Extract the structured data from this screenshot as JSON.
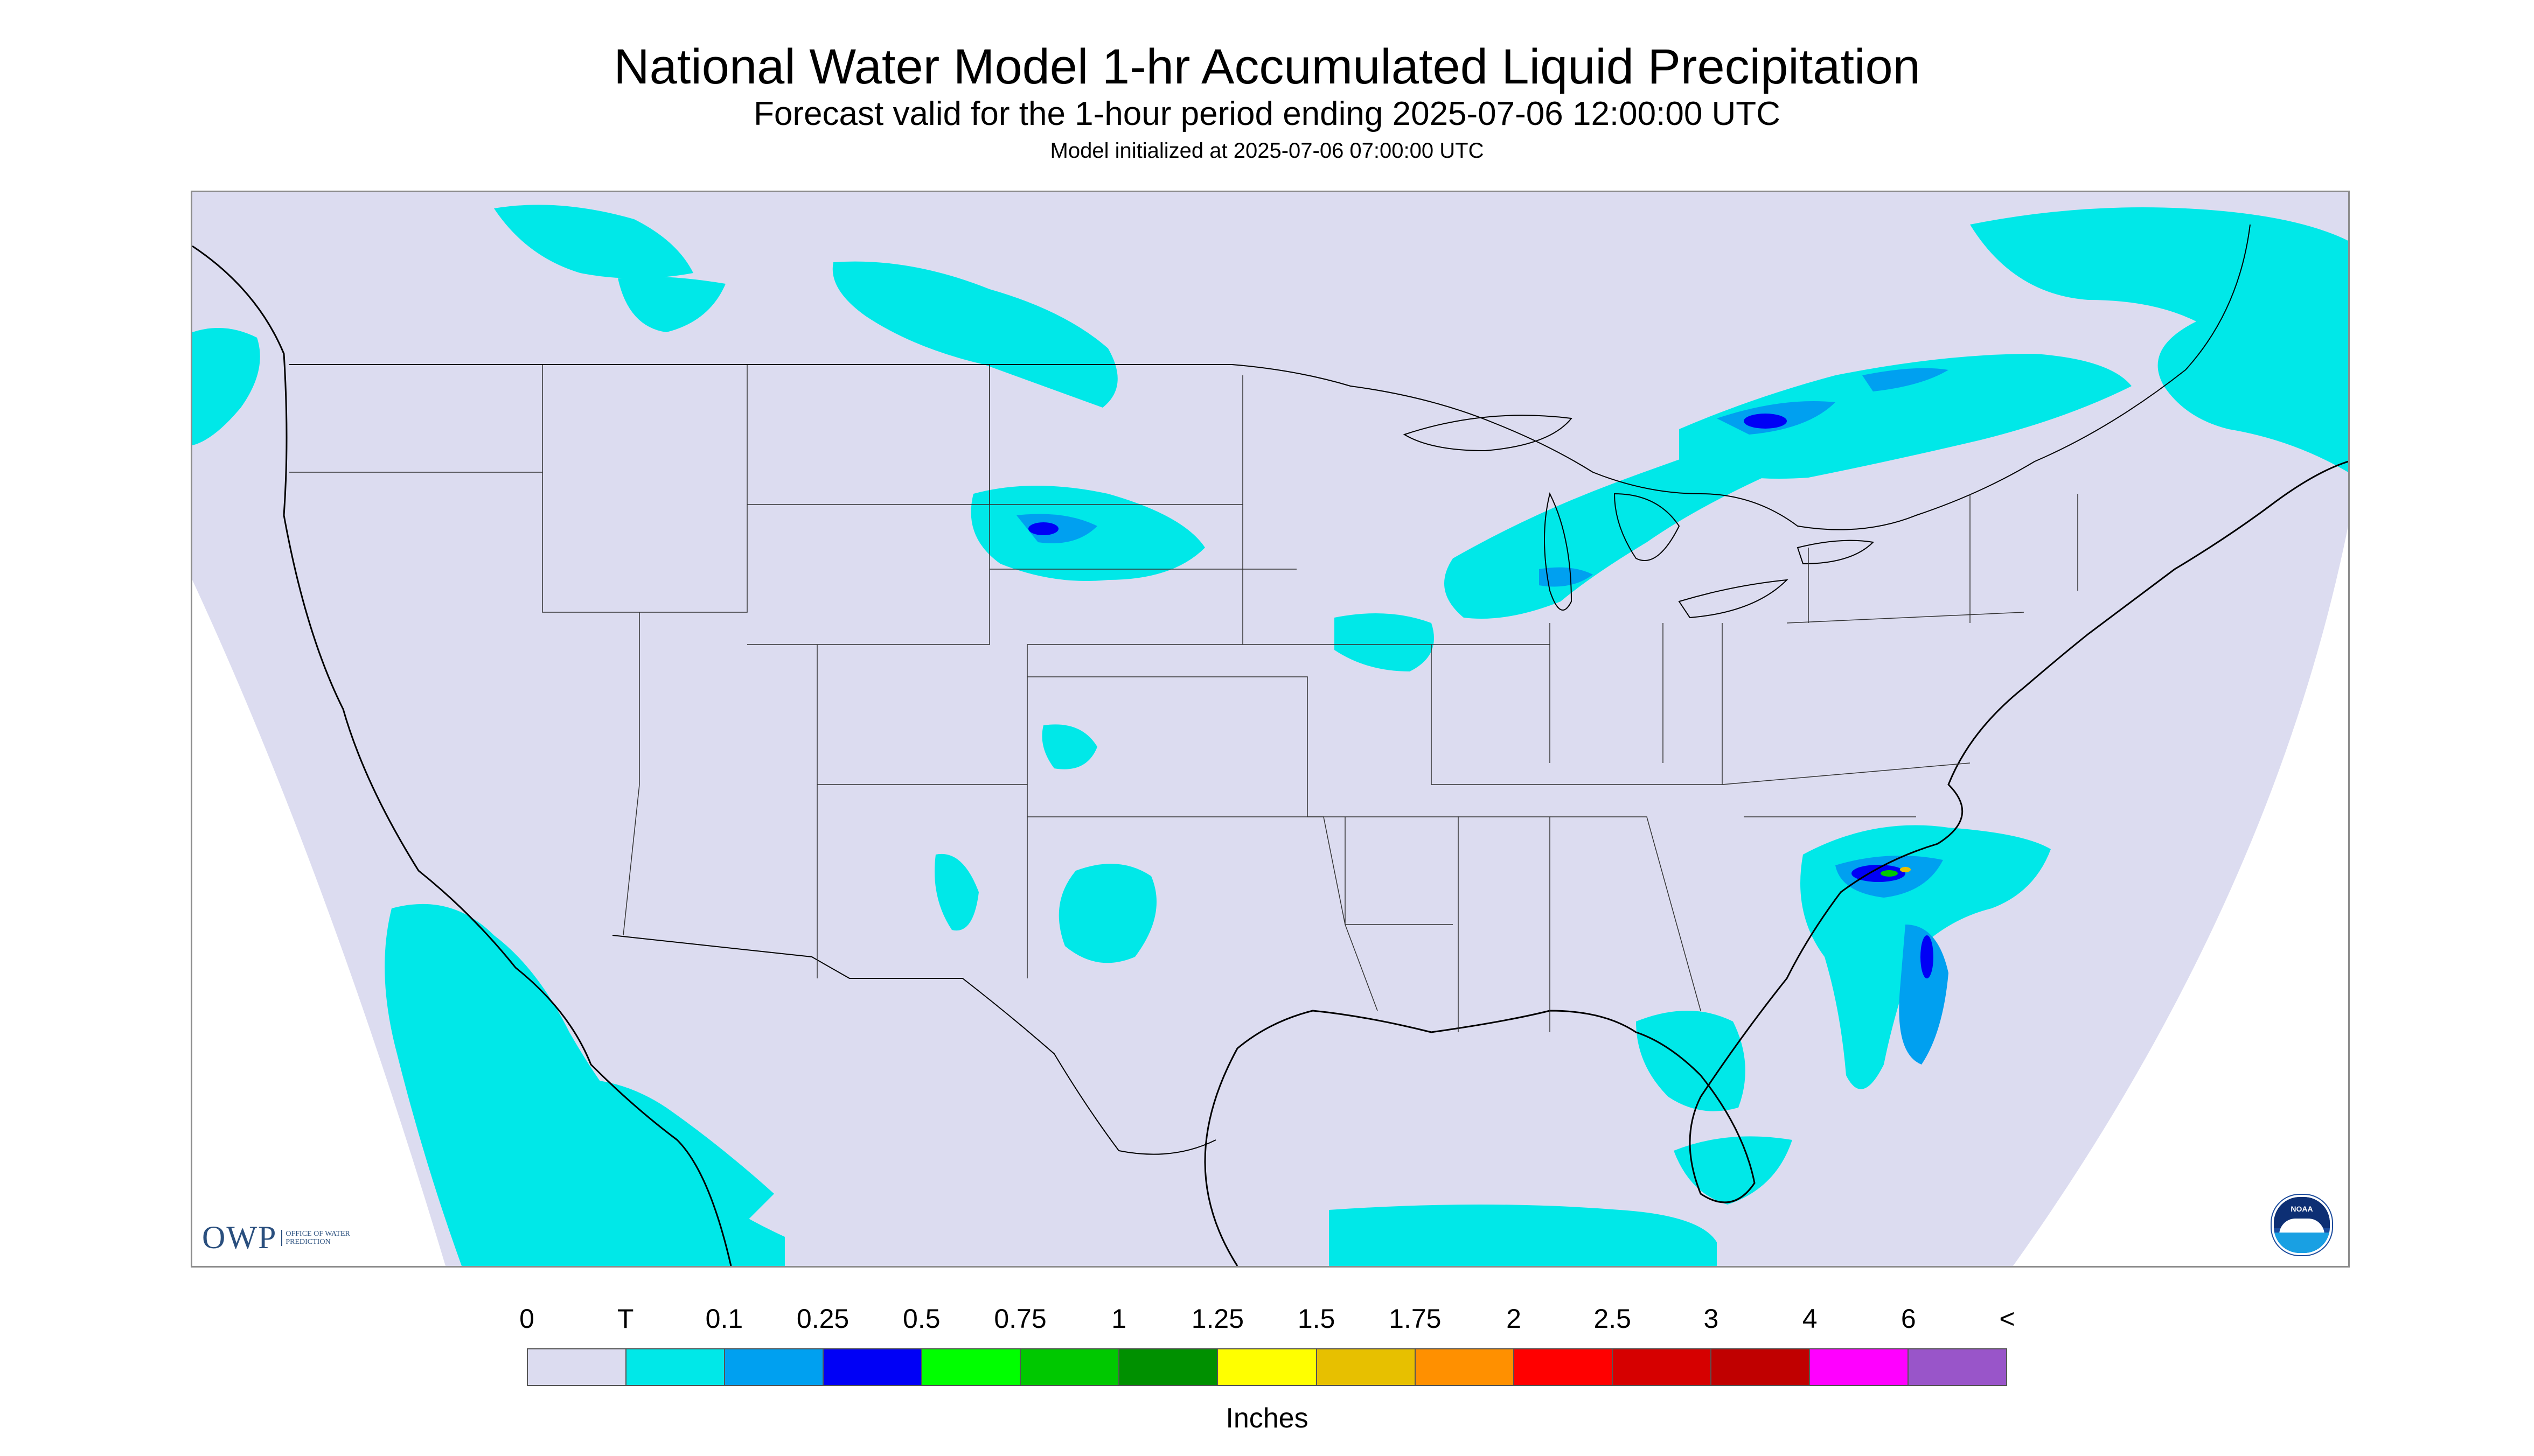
{
  "title": "National Water Model 1-hr Accumulated Liquid Precipitation",
  "subtitle": "Forecast valid for the 1-hour period ending 2025-07-06 12:00:00 UTC",
  "init_text": "Model initialized at 2025-07-06 07:00:00 UTC",
  "logos": {
    "owp_letters": "OWP",
    "owp_text": "Office of Water Prediction",
    "noaa_text": "NOAA"
  },
  "legend": {
    "labels": [
      "0",
      "T",
      "0.1",
      "0.25",
      "0.5",
      "0.75",
      "1",
      "1.25",
      "1.5",
      "1.75",
      "2",
      "2.5",
      "3",
      "4",
      "6",
      "<"
    ],
    "colors": [
      "#dcdcf0",
      "#00e8e8",
      "#00a0f0",
      "#0000f6",
      "#00ff00",
      "#00c800",
      "#009000",
      "#ffff00",
      "#e7c000",
      "#ff9000",
      "#ff0000",
      "#d60000",
      "#c00000",
      "#ff00ff",
      "#9955c9"
    ],
    "units": "Inches"
  },
  "colors": {
    "domain_fill": "#dcdcf0",
    "background": "#ffffff",
    "trace": "#00e8e8",
    "light": "#00a0f0",
    "moderate": "#0000f6",
    "boundary": "#000000"
  }
}
